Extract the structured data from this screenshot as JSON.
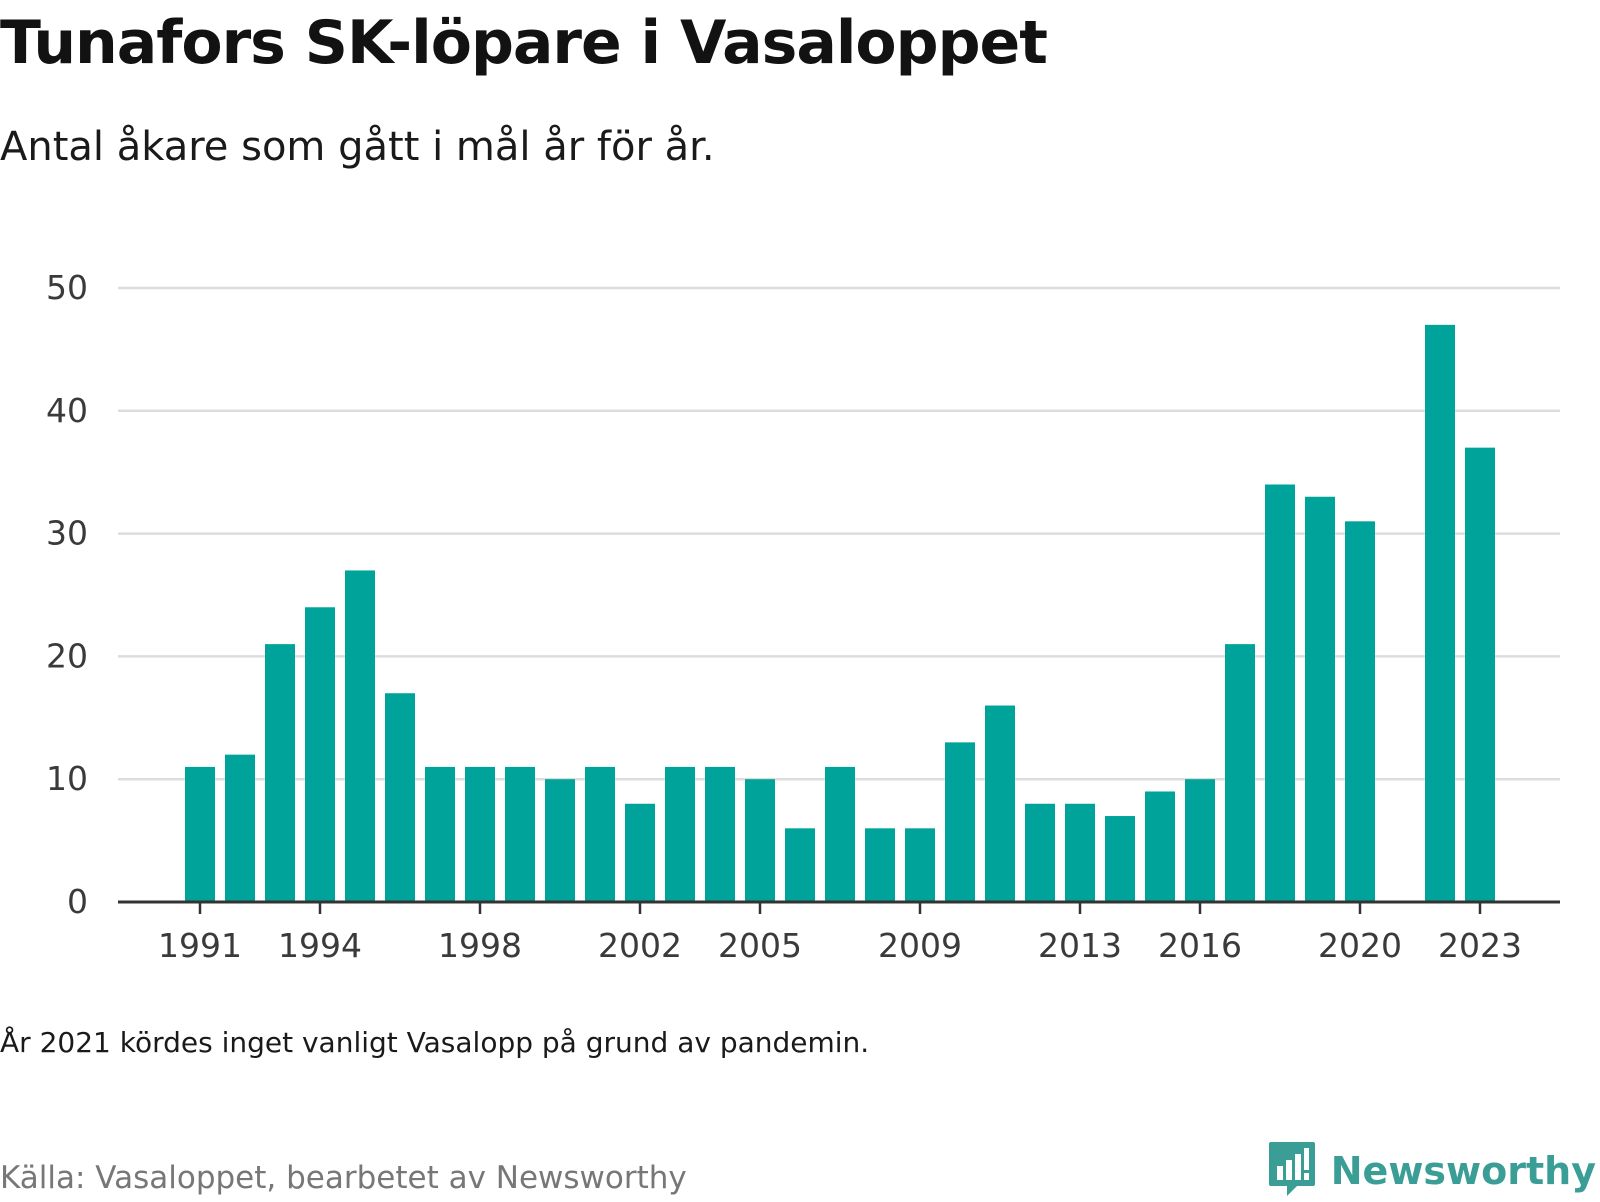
{
  "header": {
    "title": "Tunafors SK-löpare i Vasaloppet",
    "subtitle": "Antal åkare som gått i mål år för år."
  },
  "footer": {
    "note": "År 2021 kördes inget vanligt Vasalopp på grund av pandemin.",
    "source": "Källa: Vasaloppet, bearbetet av Newsworthy",
    "brand": "Newsworthy",
    "brand_icon": "newsworthy-logo-icon"
  },
  "colors": {
    "bar": "#00a39a",
    "grid": "#dddddd",
    "axis": "#333333",
    "brand": "#3a9e96"
  },
  "chart_data": {
    "type": "bar",
    "title": "Tunafors SK-löpare i Vasaloppet",
    "subtitle": "Antal åkare som gått i mål år för år.",
    "xlabel": "",
    "ylabel": "",
    "ylim": [
      0,
      50
    ],
    "yticks": [
      0,
      10,
      20,
      30,
      40,
      50
    ],
    "xticks": [
      1991,
      1994,
      1998,
      2002,
      2005,
      2009,
      2013,
      2016,
      2020,
      2023
    ],
    "grid": true,
    "legend": "none",
    "categories": [
      1991,
      1992,
      1993,
      1994,
      1995,
      1996,
      1997,
      1998,
      1999,
      2000,
      2001,
      2002,
      2003,
      2004,
      2005,
      2006,
      2007,
      2008,
      2009,
      2010,
      2011,
      2012,
      2013,
      2014,
      2015,
      2016,
      2017,
      2018,
      2019,
      2020,
      2021,
      2022,
      2023
    ],
    "values": [
      11,
      12,
      21,
      24,
      27,
      17,
      11,
      11,
      11,
      10,
      11,
      8,
      11,
      11,
      10,
      6,
      11,
      6,
      6,
      13,
      16,
      8,
      8,
      7,
      9,
      10,
      21,
      34,
      33,
      31,
      null,
      47,
      37
    ]
  }
}
